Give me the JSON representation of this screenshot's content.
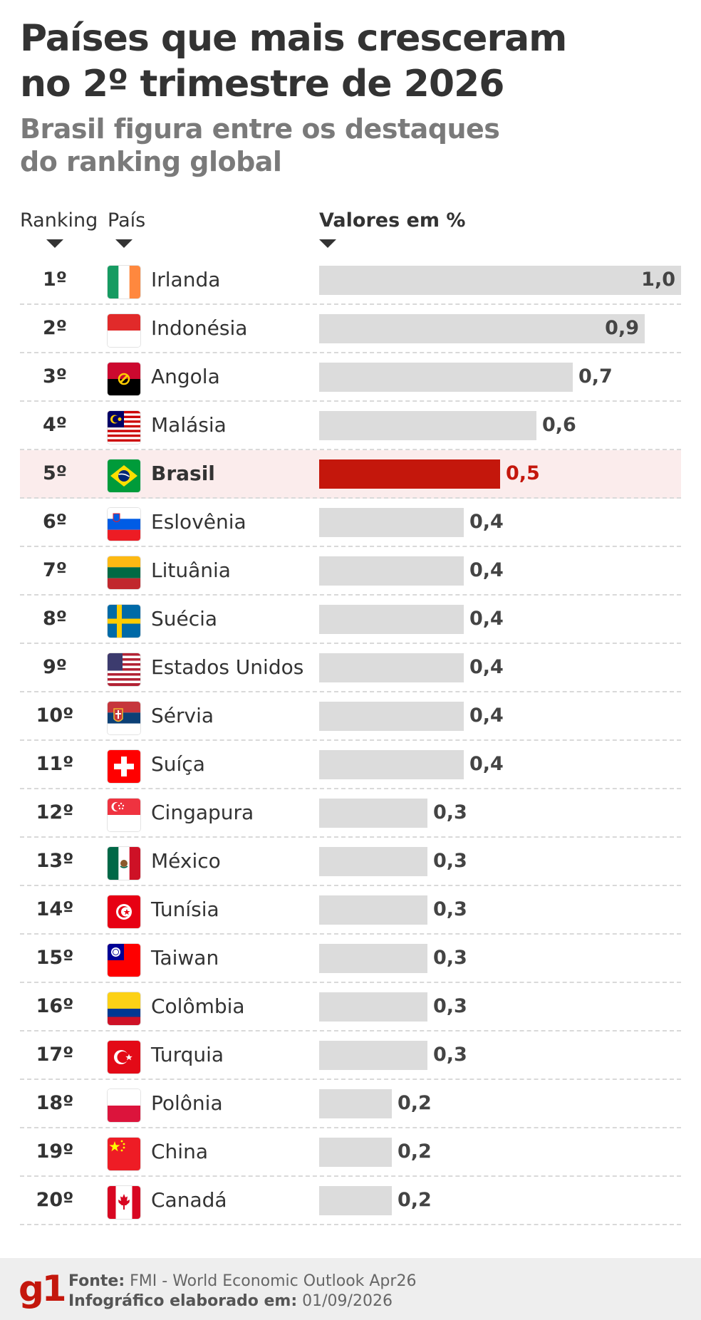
{
  "title_line1": "Países que mais cresceram",
  "title_line2": "no 2º trimestre de 2026",
  "subtitle_line1": "Brasil figura entre os destaques",
  "subtitle_line2": "do ranking global",
  "headers": {
    "ranking": "Ranking",
    "country": "País",
    "values": "Valores em %"
  },
  "chart_data": {
    "type": "bar",
    "orientation": "horizontal",
    "ylabel": "Valores em %",
    "categories": [
      "Irlanda",
      "Indonésia",
      "Angola",
      "Malásia",
      "Brasil",
      "Eslovênia",
      "Lituânia",
      "Suécia",
      "Estados Unidos",
      "Sérvia",
      "Suíça",
      "Cingapura",
      "México",
      "Tunísia",
      "Taiwan",
      "Colômbia",
      "Turquia",
      "Polônia",
      "China",
      "Canadá"
    ],
    "ranks": [
      "1º",
      "2º",
      "3º",
      "4º",
      "5º",
      "6º",
      "7º",
      "8º",
      "9º",
      "10º",
      "11º",
      "12º",
      "13º",
      "14º",
      "15º",
      "16º",
      "17º",
      "18º",
      "19º",
      "20º"
    ],
    "values": [
      1.0,
      0.9,
      0.7,
      0.6,
      0.5,
      0.4,
      0.4,
      0.4,
      0.4,
      0.4,
      0.4,
      0.3,
      0.3,
      0.3,
      0.3,
      0.3,
      0.3,
      0.2,
      0.2,
      0.2
    ],
    "value_labels": [
      "1,0",
      "0,9",
      "0,7",
      "0,6",
      "0,5",
      "0,4",
      "0,4",
      "0,4",
      "0,4",
      "0,4",
      "0,4",
      "0,3",
      "0,3",
      "0,3",
      "0,3",
      "0,3",
      "0,3",
      "0,2",
      "0,2",
      "0,2"
    ],
    "flags": [
      "ie-flag",
      "id-flag",
      "ao-flag",
      "my-flag",
      "br-flag",
      "si-flag",
      "lt-flag",
      "se-flag",
      "us-flag",
      "rs-flag",
      "ch-flag",
      "sg-flag",
      "mx-flag",
      "tn-flag",
      "tw-flag",
      "co-flag",
      "tr-flag",
      "pl-flag",
      "cn-flag",
      "ca-flag"
    ],
    "highlight": "Brasil",
    "xlim": [
      0,
      1.0
    ],
    "bar_color": "#dcdcdc",
    "highlight_color": "#c4170c"
  },
  "footer": {
    "logo": "g1",
    "source_label": "Fonte:",
    "source_value": "FMI - World Economic Outlook Apr26",
    "made_label": "Infográfico elaborado em:",
    "made_value": "01/09/2026"
  }
}
